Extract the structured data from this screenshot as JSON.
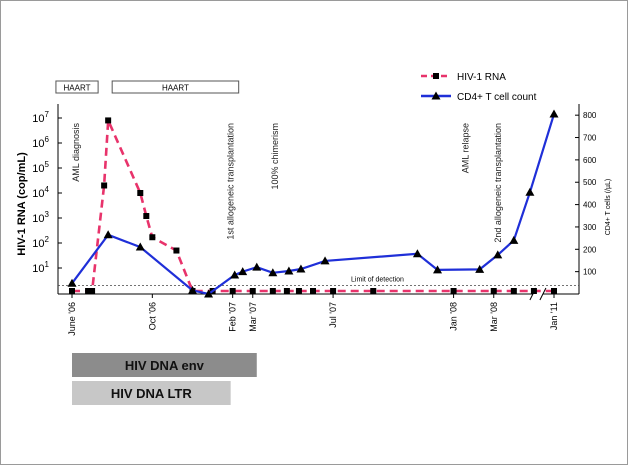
{
  "chart_data": {
    "type": "line",
    "y_left_label": "HIV-1 RNA (cop/mL)",
    "y_right_label": "CD4+ T cells (/µL)",
    "y_left_ticks": [
      {
        "base": "10",
        "exp": "1"
      },
      {
        "base": "10",
        "exp": "2"
      },
      {
        "base": "10",
        "exp": "3"
      },
      {
        "base": "10",
        "exp": "4"
      },
      {
        "base": "10",
        "exp": "5"
      },
      {
        "base": "10",
        "exp": "6"
      },
      {
        "base": "10",
        "exp": "7"
      }
    ],
    "y_left_scale": "log",
    "y_right_ticks": [
      100,
      200,
      300,
      400,
      500,
      600,
      700,
      800
    ],
    "y_right_lim": [
      0,
      850
    ],
    "x_ticks": [
      {
        "label": "June '06",
        "t": 0
      },
      {
        "label": "Oct '06",
        "t": 4
      },
      {
        "label": "Feb '07",
        "t": 8
      },
      {
        "label": "Mar '07",
        "t": 9
      },
      {
        "label": "Jul '07",
        "t": 13
      },
      {
        "label": "Jan '08",
        "t": 19
      },
      {
        "label": "Mar '08",
        "t": 21
      },
      {
        "label": "Jan '11",
        "t": 24
      }
    ],
    "axis_break": "//",
    "legend": {
      "placement": "top-right",
      "entries": [
        {
          "name": "HIV-1 RNA",
          "color": "#e8336b"
        },
        {
          "name": "CD4+ T cell count",
          "color": "#1f2fd8"
        }
      ]
    },
    "series": [
      {
        "name": "HIV-1 RNA",
        "color": "#e8336b",
        "style": "dashed",
        "axis": "left",
        "marker": "square",
        "points": [
          {
            "t": 0.0,
            "v": 0.5
          },
          {
            "t": 0.8,
            "v": 0.5
          },
          {
            "t": 1.0,
            "v": 0.5
          },
          {
            "t": 1.6,
            "v": 20000
          },
          {
            "t": 1.8,
            "v": 8000000
          },
          {
            "t": 3.4,
            "v": 10000
          },
          {
            "t": 3.7,
            "v": 1200
          },
          {
            "t": 4.0,
            "v": 170
          },
          {
            "t": 5.2,
            "v": 50
          },
          {
            "t": 6.0,
            "v": 0.5
          },
          {
            "t": 7.0,
            "v": 0.5
          },
          {
            "t": 8.0,
            "v": 0.5
          },
          {
            "t": 9.0,
            "v": 0.5
          },
          {
            "t": 10.0,
            "v": 0.5
          },
          {
            "t": 10.7,
            "v": 0.5
          },
          {
            "t": 11.3,
            "v": 0.5
          },
          {
            "t": 12.0,
            "v": 0.5
          },
          {
            "t": 13.0,
            "v": 0.5
          },
          {
            "t": 15.0,
            "v": 0.5
          },
          {
            "t": 19.0,
            "v": 0.5
          },
          {
            "t": 21.0,
            "v": 0.5
          },
          {
            "t": 22.0,
            "v": 0.5
          },
          {
            "t": 23.0,
            "v": 0.5
          },
          {
            "t": 24.0,
            "v": 0.5
          }
        ]
      },
      {
        "name": "CD4+ T cell count",
        "color": "#1f2fd8",
        "style": "solid",
        "axis": "right",
        "marker": "triangle",
        "points": [
          {
            "t": 0.0,
            "v": 48
          },
          {
            "t": 1.8,
            "v": 265
          },
          {
            "t": 3.4,
            "v": 210
          },
          {
            "t": 6.0,
            "v": 16
          },
          {
            "t": 6.8,
            "v": 0
          },
          {
            "t": 8.1,
            "v": 85
          },
          {
            "t": 8.5,
            "v": 100
          },
          {
            "t": 9.2,
            "v": 120
          },
          {
            "t": 10.0,
            "v": 95
          },
          {
            "t": 10.8,
            "v": 103
          },
          {
            "t": 11.4,
            "v": 112
          },
          {
            "t": 12.6,
            "v": 148
          },
          {
            "t": 17.2,
            "v": 180
          },
          {
            "t": 18.2,
            "v": 108
          },
          {
            "t": 20.3,
            "v": 110
          },
          {
            "t": 21.2,
            "v": 175
          },
          {
            "t": 22.0,
            "v": 240
          },
          {
            "t": 22.8,
            "v": 455
          },
          {
            "t": 24.0,
            "v": 805
          }
        ]
      }
    ],
    "annotations": [
      {
        "text": "AML diagnosis",
        "t": 0.2
      },
      {
        "text": "1st allogeneic transplantation",
        "t": 7.9
      },
      {
        "text": "100% chimerism",
        "t": 10.1
      },
      {
        "text": "AML relapse",
        "t": 19.6
      },
      {
        "text": "2nd allogeneic transplantation",
        "t": 21.2
      }
    ],
    "limit_of_detection": {
      "label": "Limit of detection",
      "value": 5
    },
    "treatment_bars": [
      {
        "label": "HAART",
        "t_start": -0.8,
        "t_end": 1.3
      },
      {
        "label": "HAART",
        "t_start": 2.0,
        "t_end": 8.3
      }
    ],
    "dna_bars": [
      {
        "label": "HIV DNA env",
        "t_start": 0.0,
        "t_end": 9.2,
        "color": "#8c8c8c"
      },
      {
        "label": "HIV DNA LTR",
        "t_start": 0.0,
        "t_end": 7.9,
        "color": "#c7c7c7"
      }
    ]
  }
}
